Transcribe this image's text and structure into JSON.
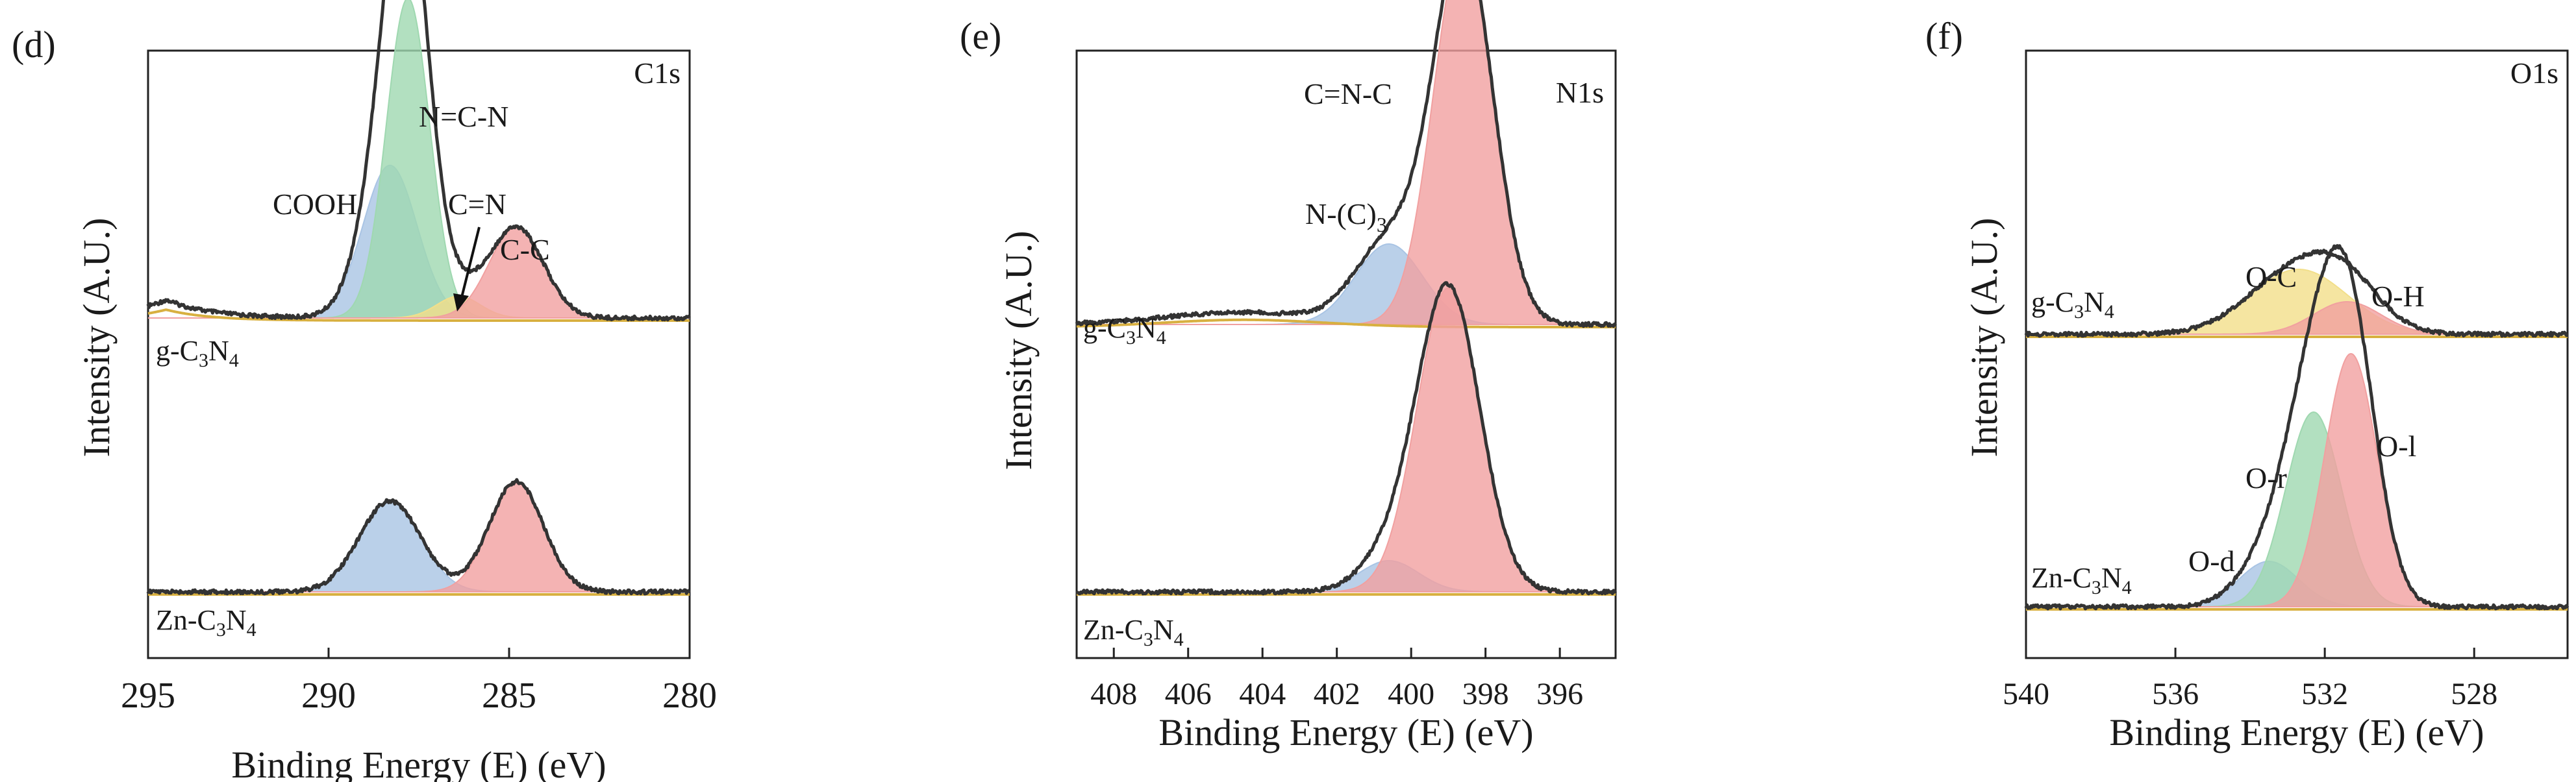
{
  "chart_data": [
    {
      "type": "line",
      "panel_label": "(d)",
      "corner_label": "C1s",
      "xlabel": "Binding Energy (E) (eV)",
      "ylabel": "Intensity (A.U.)",
      "xlim": [
        295,
        280
      ],
      "xticks": [
        "295",
        "290",
        "285",
        "280"
      ],
      "samples": [
        {
          "name": "g-C3N4",
          "name_parts": [
            "g-C",
            "3",
            "N",
            "4"
          ],
          "baseline": 0.0,
          "background_tail": [
            294.5,
            0.05
          ],
          "peaks": [
            {
              "label": "COOH",
              "center": 288.3,
              "width": 0.75,
              "height": 0.42,
              "color": "#a9c4e4"
            },
            {
              "label": "N=C-N",
              "center": 287.8,
              "width": 0.6,
              "height": 0.88,
              "color": "#9fd8b0"
            },
            {
              "label": "C=N",
              "center": 286.4,
              "width": 0.6,
              "height": 0.06,
              "color": "#f2df8a"
            },
            {
              "label": "C-C",
              "center": 284.8,
              "width": 0.75,
              "height": 0.25,
              "color": "#f1a0a0"
            }
          ]
        },
        {
          "name": "Zn-C3N4",
          "name_parts": [
            "Zn-C",
            "3",
            "N",
            "4"
          ],
          "baseline": 0.0,
          "peaks": [
            {
              "label": "",
              "center": 288.3,
              "width": 0.85,
              "height": 0.28,
              "color": "#a9c4e4"
            },
            {
              "label": "",
              "center": 284.8,
              "width": 0.75,
              "height": 0.34,
              "color": "#f1a0a0"
            }
          ]
        }
      ],
      "annotations": [
        "COOH",
        "N=C-N",
        "C=N",
        "C-C"
      ]
    },
    {
      "type": "line",
      "panel_label": "(e)",
      "corner_label": "N1s",
      "xlabel": "Binding Energy (E) (eV)",
      "ylabel": "Intensity (A.U.)",
      "xlim": [
        409,
        394.5
      ],
      "xticks": [
        "408",
        "406",
        "404",
        "402",
        "400",
        "398",
        "396"
      ],
      "samples": [
        {
          "name": "g-C3N4",
          "name_parts": [
            "g-C",
            "3",
            "N",
            "4"
          ],
          "baseline": 0.0,
          "background_hump": [
            404.5,
            1.2,
            0.03
          ],
          "peaks": [
            {
              "label": "N-(C)3",
              "center": 400.6,
              "width": 0.9,
              "height": 0.2,
              "color": "#a9c4e4"
            },
            {
              "label": "C=N-C",
              "center": 398.6,
              "width": 0.8,
              "height": 0.95,
              "color": "#f1a0a0"
            }
          ]
        },
        {
          "name": "Zn-C3N4",
          "name_parts": [
            "Zn-C",
            "3",
            "N",
            "4"
          ],
          "baseline": 0.0,
          "peaks": [
            {
              "label": "",
              "center": 400.6,
              "width": 0.8,
              "height": 0.08,
              "color": "#a9c4e4"
            },
            {
              "label": "",
              "center": 399.0,
              "width": 0.85,
              "height": 0.78,
              "color": "#f1a0a0"
            }
          ]
        }
      ],
      "annotations": [
        "N-(C)3",
        "C=N-C"
      ]
    },
    {
      "type": "line",
      "panel_label": "(f)",
      "corner_label": "O1s",
      "xlabel": "Binding Energy (E) (eV)",
      "ylabel": "Intensity (A.U.)",
      "xlim": [
        540,
        525.5
      ],
      "xticks": [
        "540",
        "536",
        "532",
        "528"
      ],
      "samples": [
        {
          "name": "g-C3N4",
          "name_parts": [
            "g-C",
            "3",
            "N",
            "4"
          ],
          "baseline": 0.0,
          "peaks": [
            {
              "label": "O-C",
              "center": 532.7,
              "width": 1.3,
              "height": 0.1,
              "color": "#f2df8a"
            },
            {
              "label": "O-H",
              "center": 531.4,
              "width": 0.9,
              "height": 0.05,
              "color": "#f1a0a0"
            }
          ]
        },
        {
          "name": "Zn-C3N4",
          "name_parts": [
            "Zn-C",
            "3",
            "N",
            "4"
          ],
          "baseline": 0.0,
          "peaks": [
            {
              "label": "O-d",
              "center": 533.5,
              "width": 0.8,
              "height": 0.07,
              "color": "#a9c4e4"
            },
            {
              "label": "O-r",
              "center": 532.3,
              "width": 0.75,
              "height": 0.3,
              "color": "#9fd8b0"
            },
            {
              "label": "O-l",
              "center": 531.3,
              "width": 0.7,
              "height": 0.39,
              "color": "#f1a0a0"
            }
          ]
        }
      ],
      "annotations": [
        "O-C",
        "O-H",
        "O-r",
        "O-l",
        "O-d"
      ]
    }
  ]
}
